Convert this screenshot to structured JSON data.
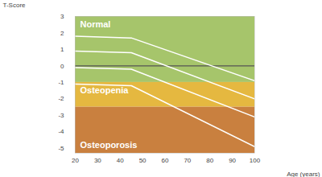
{
  "chart_data": {
    "type": "line",
    "x_label": "Age (years)",
    "y_label": "T-Score",
    "xlim": [
      20,
      100
    ],
    "xticks": [
      20,
      30,
      40,
      50,
      60,
      70,
      80,
      90,
      100
    ],
    "ylim": [
      -5.3,
      3
    ],
    "yticks": [
      -5,
      -4,
      -3,
      -2,
      -1,
      0,
      1,
      2,
      3
    ],
    "baseline": 0,
    "bands": [
      {
        "name": "Normal",
        "from": -1,
        "to": 3,
        "color": "#a6c56b"
      },
      {
        "name": "Osteopenia",
        "from": -2.5,
        "to": -1,
        "color": "#e5b840"
      },
      {
        "name": "Osteoporosis",
        "from": -5.3,
        "to": -2.5,
        "color": "#c9803f"
      }
    ],
    "x": [
      20,
      45,
      100
    ],
    "series": [
      {
        "color": "#ffffff",
        "values": [
          1.8,
          1.7,
          -0.9
        ]
      },
      {
        "color": "#ffffff",
        "values": [
          0.9,
          0.8,
          -2.0
        ]
      },
      {
        "color": "#ffffff",
        "values": [
          -0.1,
          -0.2,
          -3.1
        ]
      },
      {
        "color": "#ffffff",
        "values": [
          -1.1,
          -1.2,
          -4.9
        ]
      }
    ]
  }
}
